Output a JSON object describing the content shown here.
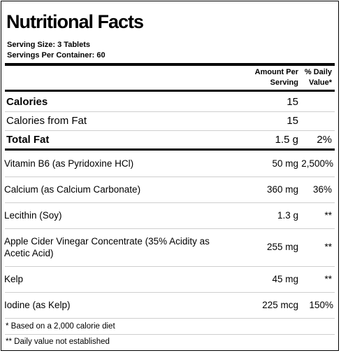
{
  "title": "Nutritional Facts",
  "serving_size": "Serving Size:  3 Tablets",
  "servings_per_container": "Servings Per Container:  60",
  "headers": {
    "amount_line1": "Amount Per",
    "amount_line2": "Serving",
    "dv_line1": "% Daily",
    "dv_line2": "Value*"
  },
  "macros": [
    {
      "name": "Calories",
      "amount": "15",
      "dv": ""
    },
    {
      "name": "Calories from Fat",
      "amount": "15",
      "dv": ""
    },
    {
      "name": "Total Fat",
      "amount": "1.5 g",
      "dv": "2%"
    }
  ],
  "nutrients": [
    {
      "name": "Vitamin B6 (as Pyridoxine HCl)",
      "amount": "50 mg",
      "dv": "2,500%"
    },
    {
      "name": "Calcium (as Calcium Carbonate)",
      "amount": "360 mg",
      "dv": "36%"
    },
    {
      "name": "Lecithin (Soy)",
      "amount": "1.3 g",
      "dv": "**"
    },
    {
      "name_line1": "Apple Cider Vinegar Concentrate (35% Acidity as",
      "name_line2": "Acetic Acid)",
      "amount": "255 mg",
      "dv": "**"
    },
    {
      "name": "Kelp",
      "amount": "45 mg",
      "dv": "**"
    },
    {
      "name": "Iodine (as Kelp)",
      "amount": "225 mcg",
      "dv": "150%"
    }
  ],
  "footnotes": [
    "* Based on a 2,000 calorie diet",
    "** Daily value not established"
  ]
}
